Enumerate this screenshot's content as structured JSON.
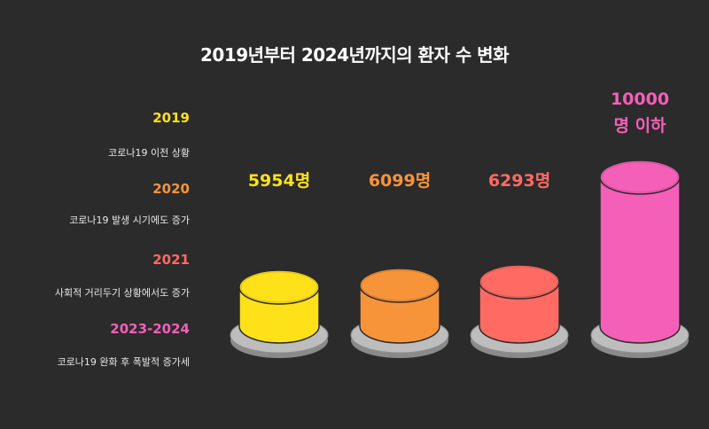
{
  "title": "2019년부터 2024년까지의 환자 수 변화",
  "legend": [
    {
      "year": "2019",
      "desc": "코로나19 이전 상황",
      "color": "#ffe11a"
    },
    {
      "year": "2020",
      "desc": "코로나19 발생 시기에도 증가",
      "color": "#f7943a"
    },
    {
      "year": "2021",
      "desc": "사회적 거리두기 상황에서도 증가",
      "color": "#ff6b63"
    },
    {
      "year": "2023-2024",
      "desc": "코로나19 완화 후 폭발적 증가세",
      "color": "#f45fb8"
    }
  ],
  "chart_data": {
    "type": "bar",
    "categories": [
      "2019",
      "2020",
      "2021",
      "2023-2024"
    ],
    "values": [
      5954,
      6099,
      6293,
      10000
    ],
    "data_labels": [
      "5954명",
      "6099명",
      "6293명",
      "10000\n명 이하"
    ],
    "colors": [
      "#ffe11a",
      "#f7943a",
      "#ff6b63",
      "#f45fb8"
    ],
    "title": "2019년부터 2024년까지의 환자 수 변화"
  }
}
